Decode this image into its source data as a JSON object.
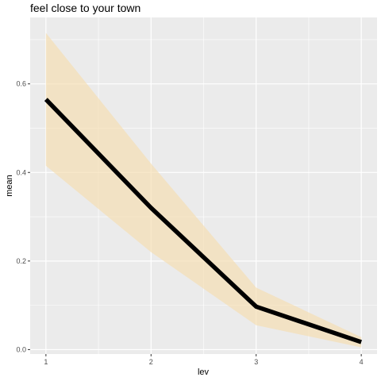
{
  "chart_data": {
    "type": "line",
    "title": "feel close to your town",
    "xlabel": "lev",
    "ylabel": "mean",
    "x": [
      1,
      2,
      3,
      4
    ],
    "x_ticks": [
      "1",
      "2",
      "3",
      "4"
    ],
    "y_ticks": [
      "0.0",
      "0.2",
      "0.4",
      "0.6"
    ],
    "xlim": [
      0.85,
      4.15
    ],
    "ylim": [
      -0.01,
      0.75
    ],
    "grid": true,
    "series": [
      {
        "values": [
          0.565,
          0.32,
          0.097,
          0.017
        ],
        "lower": [
          0.415,
          0.22,
          0.055,
          0.005
        ],
        "upper": [
          0.715,
          0.42,
          0.14,
          0.028
        ],
        "line_color": "#000000",
        "ribbon_color": "#F5DEB3"
      }
    ],
    "panel_background": "#EBEBEB",
    "grid_color": "#FFFFFF"
  }
}
